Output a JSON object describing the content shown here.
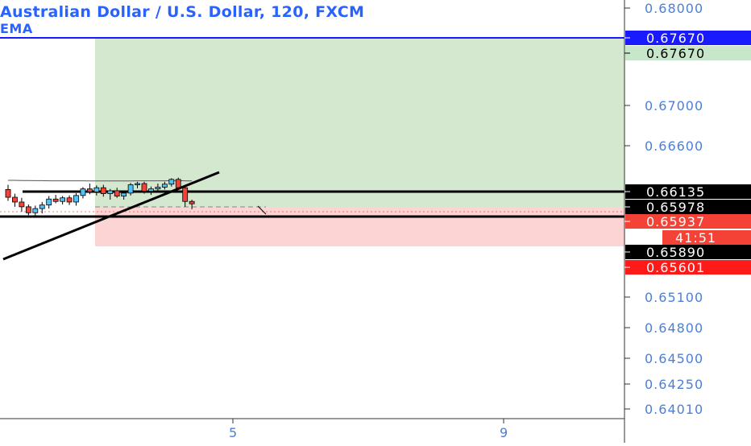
{
  "header": {
    "title": "Australian Dollar / U.S. Dollar, 120, FXCM",
    "indicator": "EMA"
  },
  "colors": {
    "blue_accent": "#2962ff",
    "up_candle": "#4fc3f7",
    "down_candle": "#f44336",
    "profit_zone": "#d4e8cf",
    "loss_zone": "#fcd4d4",
    "axis_text": "#4d7fd6",
    "last_price_red": "#ff1a1a"
  },
  "price_axis": {
    "ticks": [
      {
        "label": "0.68000",
        "value": 0.68
      },
      {
        "label": "0.67000",
        "value": 0.67
      },
      {
        "label": "0.66600",
        "value": 0.666
      },
      {
        "label": "0.65100",
        "value": 0.651
      },
      {
        "label": "0.64800",
        "value": 0.648
      },
      {
        "label": "0.64500",
        "value": 0.645
      },
      {
        "label": "0.64250",
        "value": 0.6425
      },
      {
        "label": "0.64010",
        "value": 0.6401
      }
    ],
    "markers": [
      {
        "label": "0.67670",
        "value": 0.6767,
        "bg": "#1a1aff",
        "fg": "#ffffff"
      },
      {
        "label": "0.67670",
        "value": 0.6767,
        "bg": "#c8e6c9",
        "fg": "#000000",
        "offset": 1
      },
      {
        "label": "0.66135",
        "value": 0.66135,
        "bg": "#000000",
        "fg": "#ffffff"
      },
      {
        "label": "0.65978",
        "value": 0.65978,
        "bg": "#000000",
        "fg": "#ffffff"
      },
      {
        "label": "0.65937",
        "value": 0.65937,
        "bg": "#f44336",
        "fg": "#ffffff"
      },
      {
        "label": "41:51",
        "value": 0.65937,
        "bg": "#f44336",
        "fg": "#ffffff",
        "offset": 1
      },
      {
        "label": "0.65890",
        "value": 0.6589,
        "bg": "#000000",
        "fg": "#ffffff"
      },
      {
        "label": "0.65601",
        "value": 0.65601,
        "bg": "#ff1a1a",
        "fg": "#ffffff"
      }
    ]
  },
  "time_axis": {
    "ticks": [
      {
        "label": "5",
        "index": 35
      },
      {
        "label": "9",
        "index": 75
      }
    ]
  },
  "chart_data": {
    "type": "candlestick",
    "title": "Australian Dollar / U.S. Dollar, 120, FXCM",
    "indicator": "EMA",
    "ylim": [
      0.6385,
      0.6815
    ],
    "x_ticks": [
      "5",
      "9"
    ],
    "candles": [
      {
        "o": 0.6617,
        "h": 0.6625,
        "l": 0.6598,
        "c": 0.6604
      },
      {
        "o": 0.6604,
        "h": 0.661,
        "l": 0.6588,
        "c": 0.6596
      },
      {
        "o": 0.6596,
        "h": 0.6603,
        "l": 0.658,
        "c": 0.6588
      },
      {
        "o": 0.6588,
        "h": 0.6592,
        "l": 0.6574,
        "c": 0.6578
      },
      {
        "o": 0.6578,
        "h": 0.659,
        "l": 0.6571,
        "c": 0.6585
      },
      {
        "o": 0.6585,
        "h": 0.6596,
        "l": 0.6577,
        "c": 0.6591
      },
      {
        "o": 0.6591,
        "h": 0.6606,
        "l": 0.6585,
        "c": 0.6601
      },
      {
        "o": 0.6601,
        "h": 0.6608,
        "l": 0.6594,
        "c": 0.6597
      },
      {
        "o": 0.6597,
        "h": 0.6606,
        "l": 0.6592,
        "c": 0.6603
      },
      {
        "o": 0.6603,
        "h": 0.6607,
        "l": 0.6591,
        "c": 0.6596
      },
      {
        "o": 0.6596,
        "h": 0.6611,
        "l": 0.659,
        "c": 0.6607
      },
      {
        "o": 0.6607,
        "h": 0.6621,
        "l": 0.6602,
        "c": 0.6618
      },
      {
        "o": 0.6618,
        "h": 0.6627,
        "l": 0.6609,
        "c": 0.6613
      },
      {
        "o": 0.6613,
        "h": 0.6624,
        "l": 0.6607,
        "c": 0.662
      },
      {
        "o": 0.662,
        "h": 0.6625,
        "l": 0.6605,
        "c": 0.661
      },
      {
        "o": 0.661,
        "h": 0.6618,
        "l": 0.66,
        "c": 0.6615
      },
      {
        "o": 0.6615,
        "h": 0.662,
        "l": 0.6603,
        "c": 0.6606
      },
      {
        "o": 0.6606,
        "h": 0.6614,
        "l": 0.66,
        "c": 0.6611
      },
      {
        "o": 0.6611,
        "h": 0.6628,
        "l": 0.6607,
        "c": 0.6625
      },
      {
        "o": 0.6625,
        "h": 0.663,
        "l": 0.6619,
        "c": 0.6627
      },
      {
        "o": 0.6627,
        "h": 0.663,
        "l": 0.661,
        "c": 0.6614
      },
      {
        "o": 0.6614,
        "h": 0.6622,
        "l": 0.6608,
        "c": 0.6618
      },
      {
        "o": 0.6618,
        "h": 0.6627,
        "l": 0.6613,
        "c": 0.6621
      },
      {
        "o": 0.6621,
        "h": 0.663,
        "l": 0.6617,
        "c": 0.6626
      },
      {
        "o": 0.6626,
        "h": 0.6636,
        "l": 0.6622,
        "c": 0.6634
      },
      {
        "o": 0.6634,
        "h": 0.6637,
        "l": 0.6617,
        "c": 0.662
      },
      {
        "o": 0.662,
        "h": 0.6624,
        "l": 0.6588,
        "c": 0.6597
      },
      {
        "o": 0.6597,
        "h": 0.66,
        "l": 0.6584,
        "c": 0.6593
      }
    ],
    "ema": [
      0.6626,
      0.6626,
      0.6625,
      0.6625,
      0.6624,
      0.6624,
      0.6623,
      0.6623,
      0.6623,
      0.6623,
      0.6623,
      0.6623,
      0.6622,
      0.6622,
      0.6622,
      0.6622,
      0.6622,
      0.6622,
      0.6622,
      0.6623,
      0.6623,
      0.6623,
      0.6623,
      0.6623,
      0.6624,
      0.6624,
      0.6623,
      0.6622
    ],
    "horizontal_levels": [
      {
        "value": 0.6767,
        "color": "#1a1aff"
      },
      {
        "value": 0.66135,
        "color": "#000000"
      },
      {
        "value": 0.6589,
        "color": "#000000"
      }
    ],
    "long_position": {
      "entry": 0.65978,
      "target": 0.6767,
      "stop": 0.65601
    },
    "trendline": {
      "points": [
        {
          "index": 0,
          "value": 0.6528
        },
        {
          "index": 32,
          "value": 0.6631
        }
      ]
    }
  }
}
